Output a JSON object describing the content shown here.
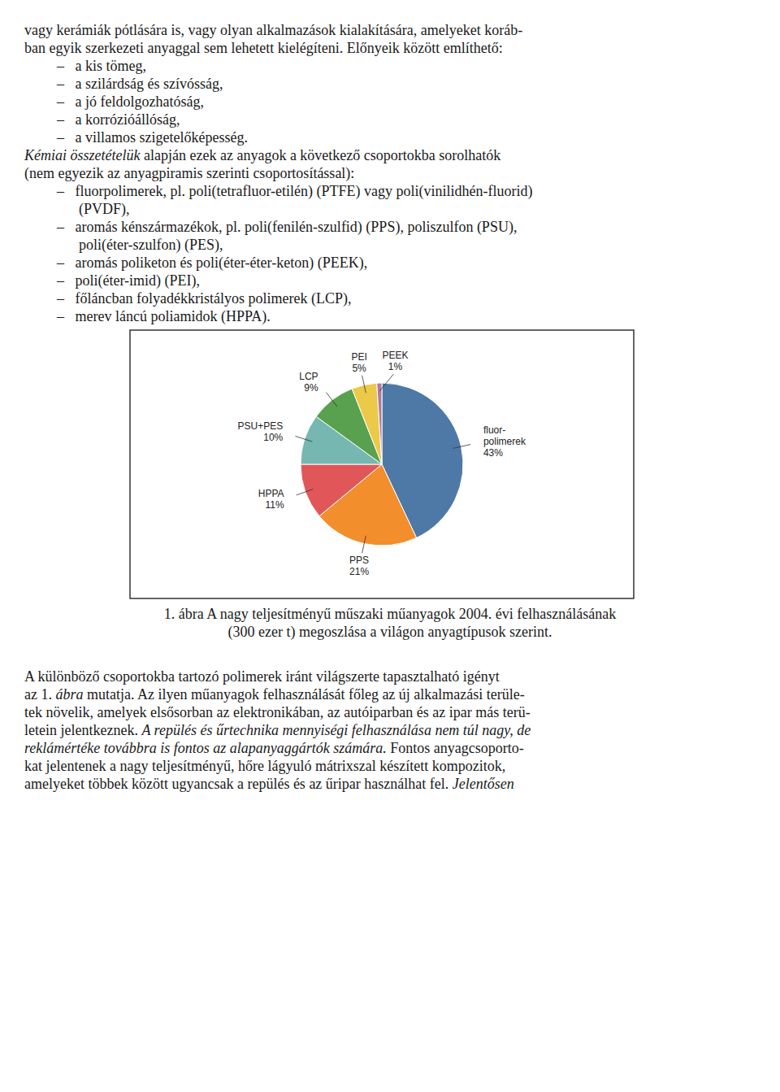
{
  "chart_data": {
    "type": "pie",
    "categories": [
      "fluor-\npolimerek",
      "PPS",
      "HPPA",
      "PSU+PES",
      "LCP",
      "PEI",
      "PEEK"
    ],
    "values": [
      43,
      21,
      11,
      10,
      9,
      5,
      1
    ],
    "value_labels": [
      "43%",
      "21%",
      "11%",
      "10%",
      "9%",
      "5%",
      "1%"
    ],
    "data_labels": true
  },
  "page": {
    "before": [
      {
        "lines": [
          [
            {
              "text": "vagy kerámiák pótlására is, vagy olyan alkalmazások kialakítására, amelyeket koráb-",
              "style": "normal"
            }
          ],
          [
            {
              "text": "ban egyik szerkezeti anyaggal sem lehetett kielégíteni. Előnyeik között említhető:",
              "style": "normal"
            }
          ]
        ]
      },
      {
        "list": [
          [
            {
              "text": "–   a kis tömeg,",
              "style": "normal"
            }
          ],
          [
            {
              "text": "–   a szilárdság és szívósság,",
              "style": "normal"
            }
          ],
          [
            {
              "text": "–   a jó feldolgozhatóság,",
              "style": "normal"
            }
          ],
          [
            {
              "text": "–   a korrózióállóság,",
              "style": "normal"
            }
          ],
          [
            {
              "text": "–   a villamos szigetelőképesség.",
              "style": "normal"
            }
          ]
        ]
      },
      {
        "lines": [
          [
            {
              "text": "Kémiai összetételük",
              "style": "italic"
            },
            {
              "text": " alapján ezek az anyagok a következő csoportokba sorolhatók",
              "style": "normal"
            }
          ],
          [
            {
              "text": "(nem egyezik az anyagpiramis szerinti csoportosítással):",
              "style": "normal"
            }
          ]
        ]
      },
      {
        "list": [
          [
            {
              "text": "–   fluorpolimerek, pl. poli(tetrafluor-etilén) (PTFE) vagy poli(vinilidhén-fluorid)",
              "style": "normal"
            }
          ],
          [
            {
              "text": "      (PVDF),",
              "style": "normal"
            }
          ],
          [
            {
              "text": "–   aromás kénszármazékok, pl. poli(fenilén-szulfid) (PPS), poliszulfon (PSU),",
              "style": "normal"
            }
          ],
          [
            {
              "text": "      poli(éter-szulfon) (PES),",
              "style": "normal"
            }
          ],
          [
            {
              "text": "–   aromás poliketon és poli(éter-éter-keton) (PEEK),",
              "style": "normal"
            }
          ],
          [
            {
              "text": "–   poli(éter-imid) (PEI),",
              "style": "normal"
            }
          ],
          [
            {
              "text": "–   főláncban folyadékkristályos polimerek (LCP),",
              "style": "normal"
            }
          ],
          [
            {
              "text": "–   merev láncú poliamidok (HPPA).",
              "style": "normal"
            }
          ]
        ]
      }
    ],
    "caption": [
      "1. ábra A nagy teljesítményű műszaki műanyagok 2004. évi felhasználásának",
      "(300 ezer t) megoszlása a világon anyagtípusok szerint."
    ],
    "after": [
      [
        {
          "text": "A különböző csoportokba tartozó polimerek iránt világszerte tapasztalható igényt",
          "style": "normal"
        }
      ],
      [
        {
          "text": "az 1. ",
          "style": "normal"
        },
        {
          "text": "ábra",
          "style": "italic"
        },
        {
          "text": " mutatja. Az ilyen műanyagok felhasználását főleg az új alkalmazási terüle-",
          "style": "normal"
        }
      ],
      [
        {
          "text": "tek növelik, amelyek elsősorban az elektronikában, az autóiparban és az ipar más terü-",
          "style": "normal"
        }
      ],
      [
        {
          "text": "letein jelentkeznek. ",
          "style": "normal"
        },
        {
          "text": "A repülés és űrtechnika mennyiségi felhasználása nem túl nagy, de",
          "style": "italic"
        }
      ],
      [
        {
          "text": "reklámértéke továbbra is fontos az alapanyaggártók számára.",
          "style": "italic"
        },
        {
          "text": " Fontos anyagcsoporto-",
          "style": "normal"
        }
      ],
      [
        {
          "text": "kat jelentenek a nagy teljesítményű, hőre lágyuló mátrixszal készített kompozitok,",
          "style": "normal"
        }
      ],
      [
        {
          "text": "amelyeket többek között ugyancsak a repülés és az űripar használhat fel. ",
          "style": "normal"
        },
        {
          "text": "Jelentősen",
          "style": "italic"
        }
      ]
    ]
  }
}
